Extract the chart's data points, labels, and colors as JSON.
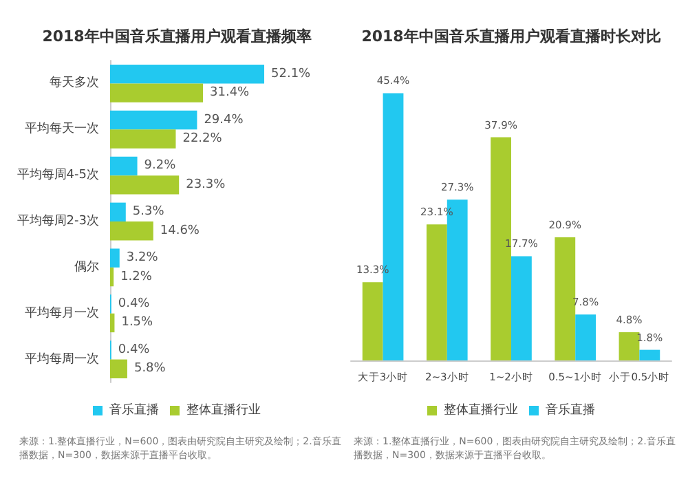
{
  "chart_data": [
    {
      "type": "bar",
      "orientation": "horizontal",
      "title": "2018年中国音乐直播用户观看直播频率",
      "categories": [
        "每天多次",
        "平均每天一次",
        "平均每周4-5次",
        "平均每周2-3次",
        "偶尔",
        "平均每月一次",
        "平均每周一次"
      ],
      "series": [
        {
          "name": "音乐直播",
          "color": "#22c8f0",
          "values": [
            52.1,
            29.4,
            9.2,
            5.3,
            3.2,
            0.4,
            0.4
          ],
          "value_labels": [
            "52.1%",
            "29.4%",
            "9.2%",
            "5.3%",
            "3.2%",
            "0.4%",
            "0.4%"
          ]
        },
        {
          "name": "整体直播行业",
          "color": "#a9cc2f",
          "values": [
            31.4,
            22.2,
            23.3,
            14.6,
            1.2,
            1.5,
            5.8
          ],
          "value_labels": [
            "31.4%",
            "22.2%",
            "23.3%",
            "14.6%",
            "1.2%",
            "1.5%",
            "5.8%"
          ]
        }
      ],
      "grid": false,
      "legend": "bottom",
      "tick_labels": "y",
      "annotations": [
        "来源：1.整体直播行业，N=600，图表由研究院自主研究及绘制；2.音乐直播数据，N=300，数据来源于直播平台收取。"
      ]
    },
    {
      "type": "bar",
      "title": "2018年中国音乐直播用户观看直播时长对比",
      "categories": [
        "大于3小时",
        "2~3小时",
        "1~2小时",
        "0.5~1小时",
        "小于0.5小时"
      ],
      "series": [
        {
          "name": "整体直播行业",
          "color": "#a9cc2f",
          "values": [
            13.3,
            23.1,
            37.9,
            20.9,
            4.8
          ],
          "value_labels": [
            "13.3%",
            "23.1%",
            "37.9%",
            "20.9%",
            "4.8%"
          ]
        },
        {
          "name": "音乐直播",
          "color": "#22c8f0",
          "values": [
            45.4,
            27.3,
            17.7,
            7.8,
            1.8
          ],
          "value_labels": [
            "45.4%",
            "27.3%",
            "17.7%",
            "7.8%",
            "1.8%"
          ]
        }
      ],
      "grid": false,
      "legend": "bottom",
      "tick_labels": "x",
      "annotations": [
        "来源：1.整体直播行业，N=600，图表由研究院自主研究及绘制；2.音乐直播数据，N=300，数据来源于直播平台收取。"
      ]
    }
  ]
}
